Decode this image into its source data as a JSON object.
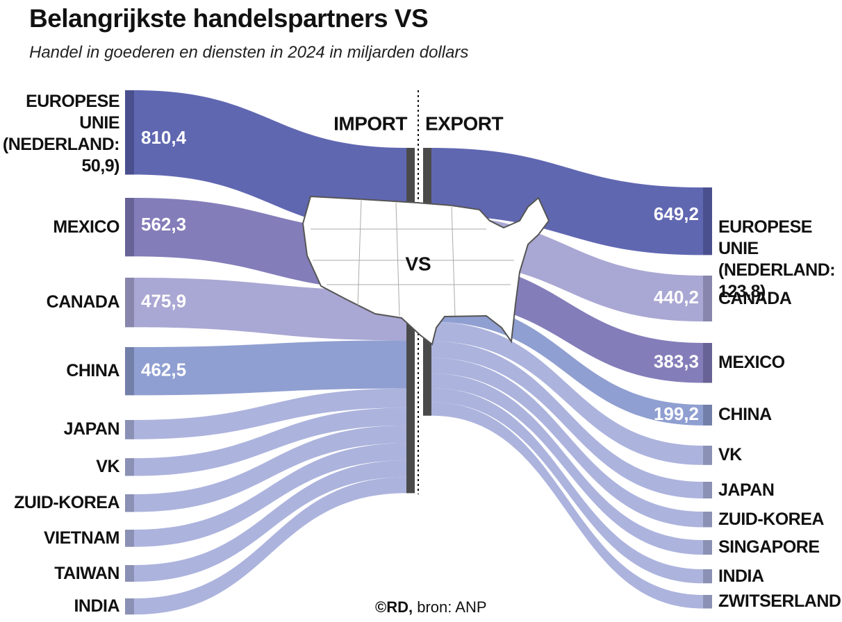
{
  "chart_data": {
    "type": "sankey",
    "title": "Belangrijkste handelspartners VS",
    "subtitle": "Handel in goederen en diensten in 2024 in miljarden dollars",
    "center_label": "VS",
    "source_credit": "©RD,",
    "source_text": "bron: ANP",
    "series": [
      {
        "name": "IMPORT",
        "categories": [
          "EUROPESE UNIE (NEDERLAND: 50,9)",
          "MEXICO",
          "CANADA",
          "CHINA",
          "JAPAN",
          "VK",
          "ZUID-KOREA",
          "VIETNAM",
          "TAIWAN",
          "INDIA"
        ],
        "values": [
          810.4,
          562.3,
          475.9,
          462.5,
          185,
          170,
          170,
          165,
          160,
          155
        ],
        "value_labels": [
          "810,4",
          "562,3",
          "475,9",
          "462,5",
          null,
          null,
          null,
          null,
          null,
          null
        ],
        "colors": [
          "#5b62ae",
          "#7f79b7",
          "#a6a4d2",
          "#8c9ccf",
          "#a9b1dc",
          "#a9b1dc",
          "#a9b1dc",
          "#a9b1dc",
          "#a9b1dc",
          "#a9b1dc"
        ]
      },
      {
        "name": "EXPORT",
        "categories": [
          "EUROPESE UNIE (NEDERLAND: 123,8)",
          "CANADA",
          "MEXICO",
          "CHINA",
          "VK",
          "JAPAN",
          "ZUID-KOREA",
          "SINGAPORE",
          "INDIA",
          "ZWITSERLAND"
        ],
        "values": [
          649.2,
          440.2,
          383.3,
          199.2,
          185,
          160,
          150,
          140,
          135,
          130
        ],
        "value_labels": [
          "649,2",
          "440,2",
          "383,3",
          "199,2",
          null,
          null,
          null,
          null,
          null,
          null
        ],
        "colors": [
          "#5b62ae",
          "#a6a4d2",
          "#7f79b7",
          "#8c9ccf",
          "#a9b1dc",
          "#a9b1dc",
          "#a9b1dc",
          "#a9b1dc",
          "#a9b1dc",
          "#a9b1dc"
        ]
      }
    ]
  }
}
